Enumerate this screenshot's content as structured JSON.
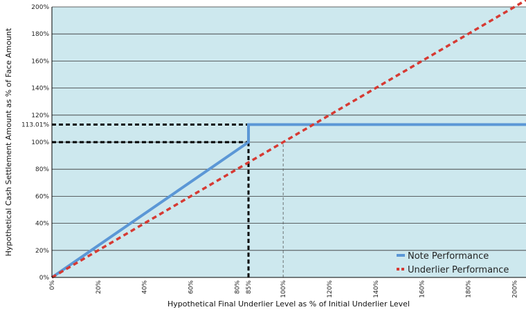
{
  "chart_data": {
    "type": "line",
    "xlabel": "Hypothetical Final Underlier Level as % of Initial Underlier Level",
    "ylabel": "Hypothetical Cash Settlement Amount as % of Face Amount",
    "xlim": [
      0,
      205
    ],
    "ylim": [
      0,
      200
    ],
    "x_ticks": [
      0,
      20,
      40,
      60,
      80,
      85,
      100,
      120,
      140,
      160,
      180,
      200
    ],
    "x_tick_labels": [
      "0%",
      "20%",
      "40%",
      "60%",
      "80%",
      "85%",
      "100%",
      "120%",
      "140%",
      "160%",
      "180%",
      "200%"
    ],
    "y_ticks": [
      0,
      20,
      40,
      60,
      80,
      100,
      113.01,
      120,
      140,
      160,
      180,
      200
    ],
    "y_tick_labels": [
      "0%",
      "20%",
      "40%",
      "60%",
      "80%",
      "100%",
      "113.01%",
      "120%",
      "140%",
      "160%",
      "180%",
      "200%"
    ],
    "grid": true,
    "legend_position": "bottom-right",
    "background_color": "#cde8ee",
    "series": [
      {
        "name": "Note Performance",
        "style": "solid",
        "color": "#5b97d6",
        "x": [
          0,
          85,
          85,
          205
        ],
        "y": [
          0,
          100,
          113.01,
          113.01
        ]
      },
      {
        "name": "Underlier Performance",
        "style": "dashed",
        "color": "#d63a33",
        "x": [
          0,
          205
        ],
        "y": [
          0,
          205
        ]
      }
    ],
    "reference_lines": [
      {
        "x": [
          0,
          85
        ],
        "y": [
          113.01,
          113.01
        ],
        "style": "dashed",
        "color": "#000000"
      },
      {
        "x": [
          0,
          85
        ],
        "y": [
          100,
          100
        ],
        "style": "dashed",
        "color": "#000000"
      },
      {
        "x": [
          85,
          85
        ],
        "y": [
          0,
          113.01
        ],
        "style": "dashed",
        "color": "#000000"
      },
      {
        "x": [
          100,
          100
        ],
        "y": [
          0,
          100
        ],
        "style": "thin-dashed",
        "color": "#555555"
      }
    ]
  }
}
